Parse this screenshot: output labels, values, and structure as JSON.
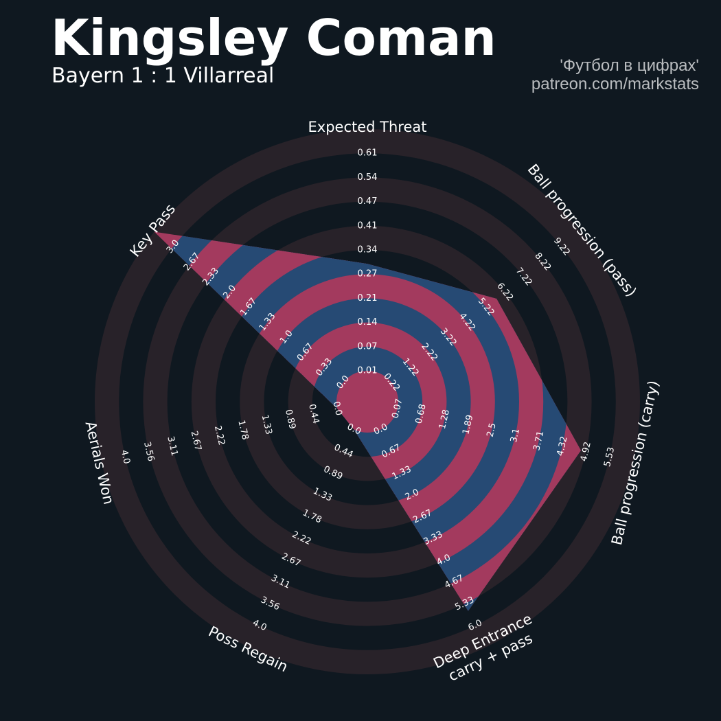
{
  "header": {
    "title": "Kingsley Coman",
    "subtitle": "Bayern 1 : 1 Villarreal",
    "credit_line1": "'Футбол в цифрах'",
    "credit_line2": "patreon.com/markstats"
  },
  "colors": {
    "background": "#0f1820",
    "ring_dark": "#282229",
    "value_blue": "#264a74",
    "value_red": "#a33a5e",
    "text": "#ffffff"
  },
  "chart_data": {
    "type": "radar",
    "title": "Kingsley Coman",
    "subtitle": "Bayern 1 : 1 Villarreal",
    "parameters": [
      {
        "label": "Expected Threat",
        "min": 0.0,
        "max": 0.61,
        "value": 0.27,
        "ticks": [
          "0.01",
          "0.07",
          "0.14",
          "0.21",
          "0.27",
          "0.34",
          "0.41",
          "0.47",
          "0.54",
          "0.61"
        ]
      },
      {
        "label": "Ball progression (pass)",
        "min": 0.22,
        "max": 9.22,
        "value": 5.22,
        "ticks": [
          "0.22",
          "1.22",
          "2.22",
          "3.22",
          "4.22",
          "5.22",
          "6.22",
          "7.22",
          "8.22",
          "9.22"
        ]
      },
      {
        "label": "Ball progression (carry)",
        "min": 0.07,
        "max": 5.53,
        "value": 4.32,
        "ticks": [
          "0.07",
          "0.68",
          "1.28",
          "1.89",
          "2.5",
          "3.1",
          "3.71",
          "4.32",
          "4.92",
          "5.53"
        ]
      },
      {
        "label": "Deep Entrance\ncarry + pass",
        "min": 0.0,
        "max": 6.0,
        "value": 5.0,
        "ticks": [
          "0.0",
          "0.67",
          "1.33",
          "2.0",
          "2.67",
          "3.33",
          "4.0",
          "4.67",
          "5.33",
          "6.0"
        ]
      },
      {
        "label": "Poss Regain",
        "min": 0.0,
        "max": 4.0,
        "value": 0.0,
        "ticks": [
          "0.0",
          "0.44",
          "0.89",
          "1.33",
          "1.78",
          "2.22",
          "2.67",
          "3.11",
          "3.56",
          "4.0"
        ]
      },
      {
        "label": "Aerials Won",
        "min": 0.0,
        "max": 4.0,
        "value": 0.0,
        "ticks": [
          "0.0",
          "0.44",
          "0.89",
          "1.33",
          "1.78",
          "2.22",
          "2.67",
          "3.11",
          "3.56",
          "4.0"
        ]
      },
      {
        "label": "Key Pass",
        "min": 0.0,
        "max": 3.0,
        "value": 3.0,
        "ticks": [
          "0.0",
          "0.33",
          "0.67",
          "1.0",
          "1.33",
          "1.67",
          "2.0",
          "2.33",
          "2.67",
          "3.0"
        ]
      }
    ]
  }
}
